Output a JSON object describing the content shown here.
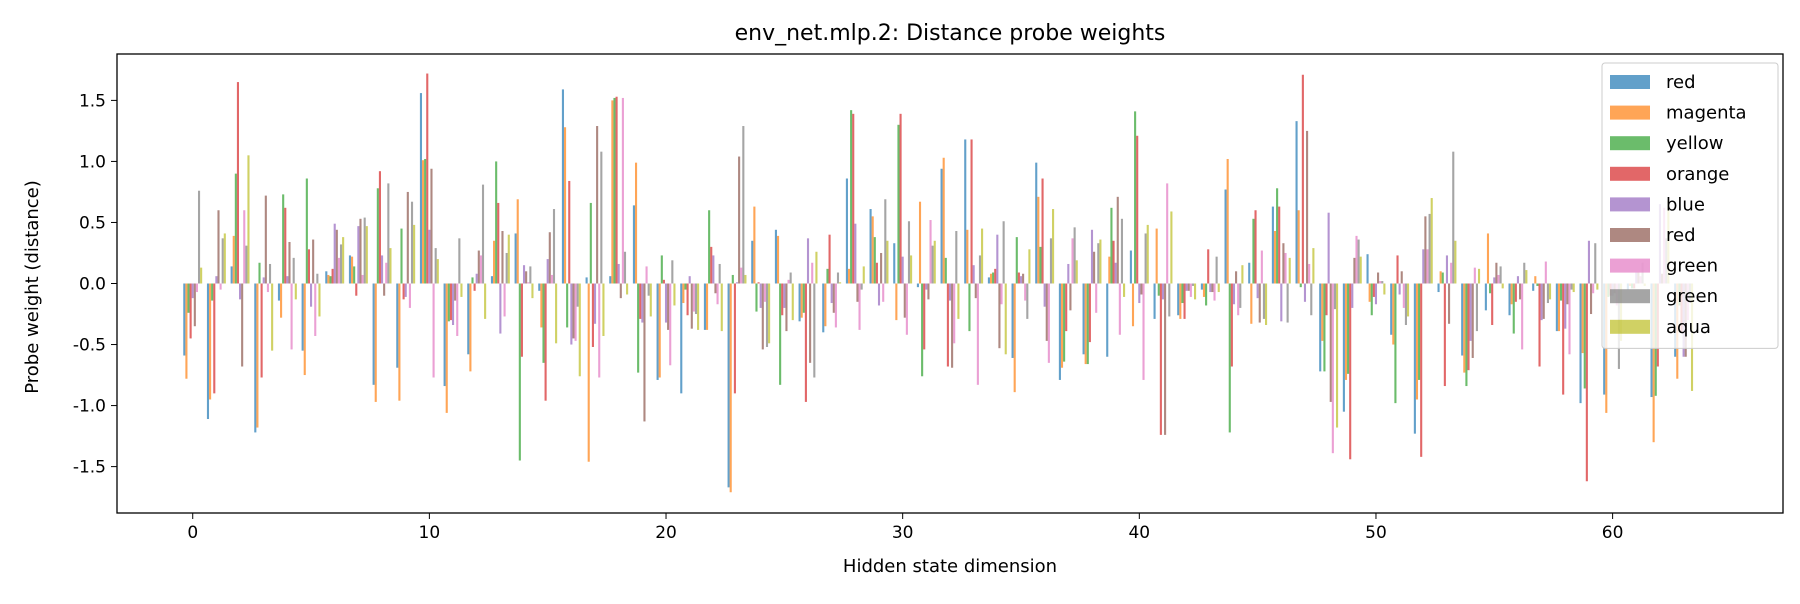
{
  "chart_data": {
    "type": "bar",
    "title": "env_net.mlp.2: Distance probe weights",
    "xlabel": "Hidden state dimension",
    "ylabel": "Probe weight (distance)",
    "xlim": [
      -3.2,
      67.2
    ],
    "ylim": [
      -1.88,
      1.88
    ],
    "xticks": [
      0,
      10,
      20,
      30,
      40,
      50,
      60
    ],
    "yticks": [
      -1.5,
      -1.0,
      -0.5,
      0.0,
      0.5,
      1.0,
      1.5
    ],
    "grid": false,
    "legend_position": "top-right",
    "x": [
      0,
      1,
      2,
      3,
      4,
      5,
      6,
      7,
      8,
      9,
      10,
      11,
      12,
      13,
      14,
      15,
      16,
      17,
      18,
      19,
      20,
      21,
      22,
      23,
      24,
      25,
      26,
      27,
      28,
      29,
      30,
      31,
      32,
      33,
      34,
      35,
      36,
      37,
      38,
      39,
      40,
      41,
      42,
      43,
      44,
      45,
      46,
      47,
      48,
      49,
      50,
      51,
      52,
      53,
      54,
      55,
      56,
      57,
      58,
      59,
      60,
      61,
      62,
      63
    ],
    "series": [
      {
        "name": "red",
        "color": "#1f77b4",
        "values": [
          -0.59,
          -1.11,
          0.14,
          -1.22,
          -0.14,
          -0.55,
          0.1,
          0.23,
          -0.83,
          -0.69,
          1.56,
          -0.84,
          -0.58,
          0.06,
          0.41,
          -0.06,
          1.59,
          0.05,
          0.06,
          0.64,
          -0.79,
          -0.9,
          -0.38,
          -1.67,
          0.35,
          0.44,
          -0.31,
          -0.4,
          0.86,
          0.61,
          0.33,
          -0.03,
          0.94,
          1.18,
          0.05,
          -0.61,
          0.99,
          -0.79,
          -0.58,
          -0.6,
          0.27,
          -0.29,
          -0.26,
          -0.05,
          0.77,
          0.17,
          0.63,
          1.33,
          -0.72,
          -1.05,
          0.24,
          -0.42,
          -1.23,
          -0.07,
          -0.59,
          -0.22,
          -0.26,
          -0.06,
          -0.39,
          -0.98,
          -0.91,
          -0.05,
          -0.93,
          -0.6
        ]
      },
      {
        "name": "magenta",
        "color": "#ff7f0e",
        "values": [
          -0.78,
          -0.95,
          0.39,
          -1.18,
          -0.28,
          -0.75,
          0.07,
          0.22,
          -0.97,
          -0.96,
          1.01,
          -1.06,
          -0.72,
          0.35,
          0.69,
          -0.36,
          1.28,
          -1.46,
          1.5,
          0.99,
          -0.77,
          -0.16,
          -0.38,
          -1.71,
          0.63,
          0.39,
          -0.28,
          -0.35,
          0.12,
          0.55,
          -0.3,
          0.67,
          1.03,
          0.44,
          0.08,
          -0.89,
          0.71,
          -0.69,
          -0.66,
          0.22,
          -0.35,
          0.45,
          -0.29,
          -0.11,
          1.02,
          -0.33,
          0.43,
          0.6,
          -0.47,
          -0.79,
          -0.15,
          -0.5,
          -0.95,
          0.1,
          -0.73,
          0.41,
          -0.17,
          0.06,
          -0.39,
          -0.57,
          -1.06,
          -0.02,
          -1.3,
          -0.78
        ]
      },
      {
        "name": "yellow",
        "color": "#2ca02c",
        "values": [
          -0.24,
          -0.14,
          0.9,
          0.17,
          0.73,
          0.86,
          0.06,
          0.14,
          0.78,
          0.45,
          1.02,
          -0.31,
          0.05,
          1.0,
          -1.45,
          -0.65,
          -0.36,
          0.66,
          1.52,
          -0.73,
          0.23,
          -0.05,
          0.6,
          0.07,
          -0.23,
          -0.83,
          -0.24,
          0.12,
          1.42,
          0.38,
          1.3,
          -0.76,
          0.21,
          -0.39,
          0.09,
          0.38,
          0.3,
          -0.64,
          -0.66,
          0.62,
          1.41,
          -0.1,
          -0.16,
          -0.18,
          -1.22,
          0.53,
          0.78,
          -0.03,
          -0.72,
          -0.74,
          -0.26,
          -0.98,
          -0.79,
          0.09,
          -0.84,
          -0.08,
          -0.41,
          -0.02,
          -0.14,
          -0.86,
          -0.11,
          -0.04,
          -0.92,
          -0.18
        ]
      },
      {
        "name": "orange",
        "color": "#d62728",
        "values": [
          -0.45,
          -0.9,
          1.65,
          -0.77,
          0.62,
          0.28,
          0.12,
          -0.1,
          0.92,
          -0.13,
          1.72,
          -0.3,
          -0.06,
          0.66,
          -0.6,
          -0.96,
          0.84,
          -0.52,
          1.53,
          -0.29,
          0.03,
          -0.26,
          0.3,
          -0.9,
          0.01,
          -0.26,
          -0.97,
          0.4,
          1.39,
          0.17,
          1.39,
          -0.54,
          -0.68,
          1.18,
          0.12,
          0.09,
          0.86,
          -0.39,
          -0.48,
          0.35,
          1.21,
          -1.24,
          -0.29,
          0.28,
          -0.68,
          0.6,
          0.63,
          1.71,
          -0.26,
          -1.44,
          -0.11,
          0.23,
          -1.42,
          -0.84,
          -0.71,
          -0.34,
          -0.15,
          -0.68,
          -0.91,
          -1.62,
          -0.1,
          -0.04,
          -0.68,
          -0.4
        ]
      },
      {
        "name": "blue",
        "color": "#9467bd",
        "values": [
          -0.12,
          0.06,
          -0.13,
          0.05,
          0.06,
          -0.19,
          0.49,
          0.47,
          0.23,
          -0.11,
          0.44,
          -0.34,
          0.08,
          -0.41,
          0.15,
          0.2,
          -0.5,
          -0.33,
          0.16,
          -0.32,
          -0.32,
          0.06,
          0.23,
          0.01,
          -0.2,
          -0.2,
          0.37,
          -0.16,
          0.49,
          -0.18,
          0.22,
          -0.05,
          -0.14,
          0.15,
          0.4,
          0.06,
          -0.19,
          0.16,
          0.44,
          0.17,
          -0.16,
          -0.13,
          -0.06,
          -0.07,
          -0.17,
          -0.12,
          -0.31,
          -0.15,
          0.58,
          -0.2,
          -0.17,
          -0.09,
          0.28,
          0.23,
          -0.47,
          0.05,
          0.06,
          -0.3,
          -0.37,
          0.35,
          -0.1,
          0.09,
          0.65,
          -0.6
        ]
      },
      {
        "name": "red",
        "color": "#8c564b",
        "values": [
          -0.35,
          0.6,
          -0.68,
          0.72,
          0.34,
          0.36,
          0.44,
          0.53,
          -0.1,
          0.75,
          0.94,
          -0.14,
          0.27,
          0.43,
          0.1,
          0.42,
          -0.45,
          1.29,
          -0.12,
          -1.13,
          -0.38,
          -0.37,
          -0.08,
          1.04,
          -0.54,
          -0.39,
          -0.65,
          -0.24,
          -0.15,
          0.25,
          -0.28,
          -0.13,
          -0.69,
          -0.12,
          -0.53,
          0.08,
          -0.47,
          -0.22,
          0.26,
          0.71,
          -0.09,
          -1.24,
          -0.06,
          -0.07,
          0.1,
          -0.32,
          0.33,
          1.25,
          -0.97,
          0.21,
          0.09,
          0.1,
          0.55,
          -0.33,
          -0.61,
          0.17,
          -0.13,
          -0.29,
          -0.17,
          -0.25,
          -0.08,
          0.09,
          0.08,
          -0.6
        ]
      },
      {
        "name": "green",
        "color": "#e377c2",
        "values": [
          -0.07,
          -0.05,
          0.6,
          -0.07,
          -0.54,
          -0.43,
          0.21,
          0.07,
          0.17,
          -0.2,
          -0.77,
          -0.43,
          0.23,
          -0.27,
          0.01,
          0.07,
          -0.47,
          -0.77,
          1.52,
          0.14,
          -0.67,
          -0.23,
          -0.17,
          0.13,
          -0.15,
          0.03,
          0.17,
          -0.36,
          -0.38,
          -0.15,
          -0.42,
          0.52,
          -0.49,
          -0.83,
          -0.17,
          -0.14,
          -0.65,
          0.37,
          -0.24,
          -0.42,
          -0.79,
          0.82,
          -0.11,
          -0.14,
          -0.26,
          0.27,
          0.25,
          0.16,
          -1.39,
          0.39,
          0.02,
          -0.2,
          0.28,
          0.17,
          0.13,
          0.07,
          -0.54,
          0.18,
          -0.58,
          -0.08,
          -0.18,
          0.06,
          0.62,
          -0.3
        ]
      },
      {
        "name": "green",
        "color": "#7f7f7f",
        "values": [
          0.76,
          0.37,
          0.31,
          0.16,
          0.21,
          0.08,
          0.32,
          0.54,
          0.82,
          0.67,
          0.29,
          0.37,
          0.81,
          0.25,
          0.14,
          0.61,
          -0.19,
          1.08,
          0.26,
          -0.1,
          0.19,
          -0.25,
          0.16,
          1.29,
          -0.52,
          0.09,
          -0.77,
          0.09,
          -0.05,
          0.69,
          0.51,
          0.31,
          0.43,
          0.23,
          0.51,
          -0.29,
          0.37,
          0.46,
          0.33,
          0.53,
          0.41,
          -0.27,
          -0.02,
          0.22,
          -0.2,
          -0.29,
          -0.32,
          -0.26,
          -0.21,
          0.36,
          0.02,
          -0.34,
          0.57,
          1.08,
          -0.39,
          0.14,
          0.17,
          -0.16,
          -0.05,
          0.33,
          -0.7,
          0.17,
          0.37,
          -0.15
        ]
      },
      {
        "name": "aqua",
        "color": "#bcbd22",
        "values": [
          0.13,
          0.41,
          1.05,
          -0.55,
          -0.13,
          -0.27,
          0.38,
          0.47,
          0.29,
          0.48,
          0.2,
          -0.11,
          -0.29,
          0.4,
          -0.12,
          -0.49,
          -0.76,
          -0.43,
          -0.09,
          -0.27,
          -0.18,
          -0.38,
          -0.39,
          0.07,
          -0.49,
          -0.3,
          0.26,
          0.01,
          0.14,
          0.35,
          0.23,
          0.35,
          -0.29,
          0.45,
          -0.58,
          0.28,
          0.61,
          0.19,
          0.36,
          -0.11,
          0.48,
          0.59,
          -0.13,
          -0.07,
          0.15,
          -0.34,
          0.21,
          0.29,
          -1.18,
          0.22,
          -0.09,
          -0.27,
          0.7,
          0.35,
          0.12,
          -0.04,
          0.11,
          -0.13,
          -0.07,
          -0.05,
          -0.47,
          -0.02,
          0.68,
          -0.88
        ]
      }
    ]
  }
}
